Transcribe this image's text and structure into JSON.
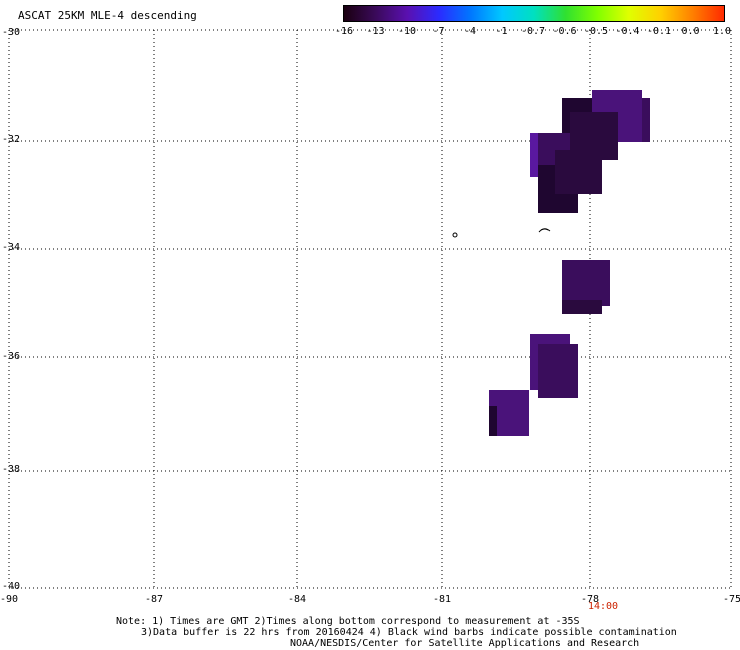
{
  "title": "ASCAT 25KM MLE-4 descending",
  "colorbar": {
    "labels": [
      "-16",
      "-13",
      "-10",
      "-7",
      "-4",
      "-1",
      "-0.7",
      "-0.6",
      "-0.5",
      "-0.4",
      "-0.1",
      "0.0",
      "1.0"
    ],
    "colors": [
      "#1a0010",
      "#3a0a5a",
      "#5a10b0",
      "#2b2bff",
      "#0077ff",
      "#00c8ff",
      "#00e0c0",
      "#30e030",
      "#80ff00",
      "#e0ff00",
      "#ffd000",
      "#ff8000",
      "#ff2a00"
    ]
  },
  "map": {
    "lon_labels": [
      "-90",
      "-87",
      "-84",
      "-81",
      "-78",
      "-75"
    ],
    "lat_labels": [
      "-30",
      "-32",
      "-34",
      "-36",
      "-38",
      "-40"
    ],
    "time_label": "14:00"
  },
  "notes": {
    "line1": "Note: 1) Times are GMT 2)Times along bottom correspond to measurement at -35S",
    "line2": "3)Data buffer is 22 hrs from 20160424 4) Black wind barbs indicate possible contamination",
    "line3": "NOAA/NESDIS/Center for Satellite Applications and Research"
  },
  "data_colors": {
    "dark": "#1f0630",
    "darker": "#2a0a3e",
    "mid": "#3a0d5c",
    "purple": "#4a137a",
    "bright": "#5a18a0"
  }
}
